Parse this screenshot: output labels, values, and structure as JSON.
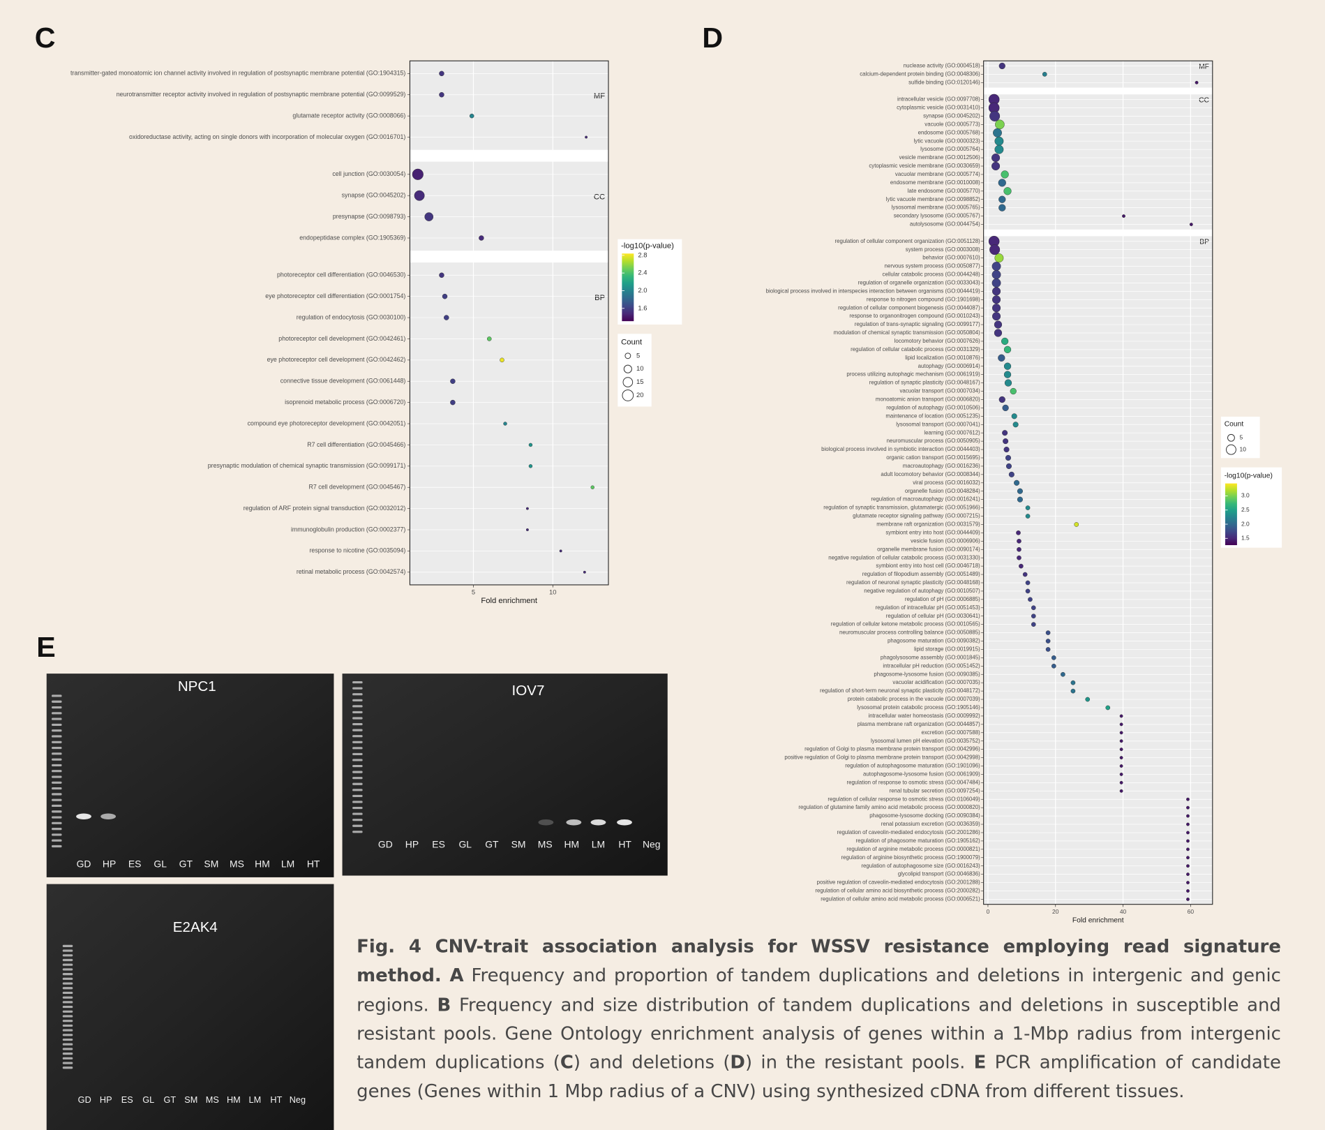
{
  "chart_data": [
    {
      "type": "dot",
      "label": "C",
      "xlabel": "Fold enrichment",
      "xlim": [
        1,
        13.5
      ],
      "xticks": [
        5,
        10
      ],
      "size_title": "Count",
      "size_ticks": [
        5,
        10,
        15,
        20
      ],
      "color_title": "-log10(p-value)",
      "color_lim": [
        1.31,
        2.84
      ],
      "color_ticks": [
        1.6,
        {
          "value": 2,
          "label": "2.0"
        },
        2.4,
        2.8
      ],
      "facets": [
        {
          "name": "MF",
          "categories": [
            "transmitter-gated monoatomic ion channel activity involved in regulation of postsynaptic membrane potential (GO:1904315)",
            "neurotransmitter receptor activity involved in regulation of postsynaptic membrane potential (GO:0099529)",
            "glutamate receptor activity (GO:0008066)",
            "oxidoreductase activity, acting on single donors with incorporation of molecular oxygen (GO:0016701)"
          ],
          "values": [
            3.0,
            3.0,
            4.9,
            12.1
          ],
          "counts": [
            4,
            4,
            3,
            1
          ],
          "p": [
            1.55,
            1.55,
            2.0,
            1.5
          ]
        },
        {
          "name": "CC",
          "categories": [
            "cell junction (GO:0030054)",
            "synapse (GO:0045202)",
            "presynapse (GO:0098793)",
            "endopeptidase complex (GO:1905369)"
          ],
          "values": [
            1.5,
            1.6,
            2.2,
            5.5
          ],
          "counts": [
            20,
            17,
            12,
            4
          ],
          "p": [
            1.45,
            1.5,
            1.55,
            1.5
          ]
        },
        {
          "name": "BP",
          "categories": [
            "photoreceptor cell differentiation (GO:0046530)",
            "eye photoreceptor cell differentiation (GO:0001754)",
            "regulation of endocytosis (GO:0030100)",
            "photoreceptor cell development (GO:0042461)",
            "eye photoreceptor cell development (GO:0042462)",
            "connective tissue development (GO:0061448)",
            "isoprenoid metabolic process (GO:0006720)",
            "compound eye photoreceptor development (GO:0042051)",
            "R7 cell differentiation (GO:0045466)",
            "presynaptic modulation of chemical synaptic transmission (GO:0099171)",
            "R7 cell development (GO:0045467)",
            "regulation of ARF protein signal transduction (GO:0032012)",
            "immunoglobulin production (GO:0002377)",
            "response to nicotine (GO:0035094)",
            "retinal metabolic process (GO:0042574)"
          ],
          "values": [
            3.0,
            3.2,
            3.3,
            6.0,
            6.8,
            3.7,
            3.7,
            7.0,
            8.6,
            8.6,
            12.5,
            8.4,
            8.4,
            10.5,
            12.0
          ],
          "counts": [
            4,
            4,
            4,
            3,
            3,
            4,
            4,
            2,
            2,
            2,
            2,
            1,
            1,
            1,
            1
          ],
          "p": [
            1.55,
            1.6,
            1.6,
            2.45,
            2.8,
            1.6,
            1.6,
            2.0,
            2.1,
            2.1,
            2.45,
            1.5,
            1.5,
            1.5,
            1.5
          ]
        }
      ]
    },
    {
      "type": "dot",
      "label": "D",
      "xlabel": "Fold enrichment",
      "xlim": [
        -1.3,
        66.5
      ],
      "xticks": [
        0,
        20,
        40,
        60
      ],
      "size_title": "Count",
      "size_ticks": [
        5,
        10
      ],
      "color_title": "-log10(p-value)",
      "color_lim": [
        1.26,
        3.44
      ],
      "color_ticks": [
        1.5,
        {
          "value": 2,
          "label": "2.0"
        },
        2.5,
        {
          "value": 3,
          "label": "3.0"
        }
      ],
      "facets": [
        {
          "name": "MF",
          "categories": [
            "nuclease activity (GO:0004518)",
            "calcium-dependent protein binding (GO:0048306)",
            "sulfide binding (GO:0120146)"
          ],
          "values": [
            4.2,
            16.8,
            61.8
          ],
          "counts": [
            4,
            2,
            1
          ],
          "p": [
            1.6,
            2.2,
            1.4
          ]
        },
        {
          "name": "CC",
          "categories": [
            "intracellular vesicle (GO:0097708)",
            "cytoplasmic vesicle (GO:0031410)",
            "synapse (GO:0045202)",
            "vacuole (GO:0005773)",
            "endosome (GO:0005768)",
            "lytic vacuole (GO:0000323)",
            "lysosome (GO:0005764)",
            "vesicle membrane (GO:0012506)",
            "cytoplasmic vesicle membrane (GO:0030659)",
            "vacuolar membrane (GO:0005774)",
            "endosome membrane (GO:0010008)",
            "late endosome (GO:0005770)",
            "lytic vacuole membrane (GO:0098852)",
            "lysosomal membrane (GO:0005765)",
            "secondary lysosome (GO:0005767)",
            "autolysosome (GO:0044754)"
          ],
          "values": [
            1.8,
            1.8,
            2.0,
            3.5,
            2.8,
            3.3,
            3.3,
            2.3,
            2.3,
            5.0,
            4.2,
            5.8,
            4.2,
            4.2,
            40.2,
            60.2
          ],
          "counts": [
            12,
            12,
            11,
            9,
            8,
            8,
            8,
            7,
            7,
            6,
            6,
            6,
            5,
            5,
            1,
            1
          ],
          "p": [
            1.5,
            1.5,
            1.6,
            3.0,
            2.1,
            2.3,
            2.3,
            1.6,
            1.6,
            2.8,
            2.0,
            2.8,
            2.0,
            2.0,
            1.4,
            1.4
          ]
        },
        {
          "name": "BP",
          "categories": [
            "regulation of cellular component organization (GO:0051128)",
            "system process (GO:0003008)",
            "behavior (GO:0007610)",
            "nervous system process (GO:0050877)",
            "cellular catabolic process (GO:0044248)",
            "regulation of organelle organization (GO:0033043)",
            "biological process involved in interspecies interaction between organisms (GO:0044419)",
            "response to nitrogen compound (GO:1901698)",
            "regulation of cellular component biogenesis (GO:0044087)",
            "response to organonitrogen compound (GO:0010243)",
            "regulation of trans-synaptic signaling (GO:0099177)",
            "modulation of chemical synaptic transmission (GO:0050804)",
            "locomotory behavior (GO:0007626)",
            "regulation of cellular catabolic process (GO:0031329)",
            "lipid localization (GO:0010876)",
            "autophagy (GO:0006914)",
            "process utilizing autophagic mechanism (GO:0061919)",
            "regulation of synaptic plasticity (GO:0048167)",
            "vacuolar transport (GO:0007034)",
            "monoatomic anion transport (GO:0006820)",
            "regulation of autophagy (GO:0010506)",
            "maintenance of location (GO:0051235)",
            "lysosomal transport (GO:0007041)",
            "learning (GO:0007612)",
            "neuromuscular process (GO:0050905)",
            "biological process involved in symbiotic interaction (GO:0044403)",
            "organic cation transport (GO:0015695)",
            "macroautophagy (GO:0016236)",
            "adult locomotory behavior (GO:0008344)",
            "viral process (GO:0016032)",
            "organelle fusion (GO:0048284)",
            "regulation of macroautophagy (GO:0016241)",
            "regulation of synaptic transmission, glutamatergic (GO:0051966)",
            "glutamate receptor signaling pathway (GO:0007215)",
            "membrane raft organization (GO:0031579)",
            "symbiont entry into host (GO:0044409)",
            "vesicle fusion (GO:0006906)",
            "organelle membrane fusion (GO:0090174)",
            "negative regulation of cellular catabolic process (GO:0031330)",
            "symbiont entry into host cell (GO:0046718)",
            "regulation of filopodium assembly (GO:0051489)",
            "regulation of neuronal synaptic plasticity (GO:0048168)",
            "negative regulation of autophagy (GO:0010507)",
            "regulation of pH (GO:0006885)",
            "regulation of intracellular pH (GO:0051453)",
            "regulation of cellular pH (GO:0030641)",
            "regulation of cellular ketone metabolic process (GO:0010565)",
            "neuromuscular process controlling balance (GO:0050885)",
            "phagosome maturation (GO:0090382)",
            "lipid storage (GO:0019915)",
            "phagolysosome assembly (GO:0001845)",
            "intracellular pH reduction (GO:0051452)",
            "phagosome-lysosome fusion (GO:0090385)",
            "vacuolar acidification (GO:0007035)",
            "regulation of short-term neuronal synaptic plasticity (GO:0048172)",
            "protein catabolic process in the vacuole (GO:0007039)",
            "lysosomal protein catabolic process (GO:1905146)",
            "intracellular water homeostasis (GO:0009992)",
            "plasma membrane raft organization (GO:0044857)",
            "excretion (GO:0007588)",
            "lysosomal lumen pH elevation (GO:0035752)",
            "regulation of Golgi to plasma membrane protein transport (GO:0042996)",
            "positive regulation of Golgi to plasma membrane protein transport (GO:0042998)",
            "regulation of autophagosome maturation (GO:1901096)",
            "autophagosome-lysosome fusion (GO:0061909)",
            "regulation of response to osmotic stress (GO:0047484)",
            "renal tubular secretion (GO:0097254)",
            "regulation of cellular response to osmotic stress (GO:0106049)",
            "regulation of glutamine family amino acid metabolic process (GO:0000820)",
            "phagosome-lysosome docking (GO:0090384)",
            "renal potassium excretion (GO:0036359)",
            "regulation of caveolin-mediated endocytosis (GO:2001286)",
            "regulation of phagosome maturation (GO:1905162)",
            "regulation of arginine metabolic process (GO:0000821)",
            "regulation of arginine biosynthetic process (GO:1900079)",
            "regulation of autophagosome size (GO:0016243)",
            "glycolipid transport (GO:0046836)",
            "positive regulation of caveolin-mediated endocytosis (GO:2001288)",
            "regulation of cellular amino acid biosynthetic process (GO:2000282)",
            "regulation of cellular amino acid metabolic process (GO:0006521)"
          ],
          "values": [
            1.8,
            2.0,
            3.3,
            2.5,
            2.5,
            2.5,
            2.5,
            2.5,
            2.5,
            2.5,
            3.0,
            3.0,
            5.0,
            5.8,
            4.0,
            5.8,
            5.8,
            6.0,
            7.5,
            4.2,
            5.2,
            7.8,
            8.2,
            5.0,
            5.2,
            5.5,
            6.0,
            6.2,
            7.0,
            8.5,
            9.5,
            9.5,
            11.8,
            11.8,
            26.2,
            9.0,
            9.2,
            9.2,
            9.2,
            9.8,
            11.0,
            11.8,
            11.8,
            12.5,
            13.5,
            13.5,
            13.5,
            17.8,
            17.8,
            17.8,
            19.5,
            19.5,
            22.2,
            25.2,
            25.2,
            29.5,
            35.5,
            39.5,
            39.5,
            39.5,
            39.5,
            39.5,
            39.5,
            39.5,
            39.5,
            39.5,
            39.5,
            59.2,
            59.2,
            59.2,
            59.2,
            59.2,
            59.2,
            59.2,
            59.2,
            59.2,
            59.2,
            59.2,
            59.2,
            59.2
          ],
          "counts": [
            12,
            11,
            8,
            8,
            8,
            8,
            7,
            7,
            7,
            7,
            6,
            6,
            5,
            5,
            5,
            5,
            5,
            5,
            4,
            4,
            4,
            3,
            3,
            3,
            3,
            3,
            3,
            3,
            3,
            3,
            3,
            3,
            2,
            2,
            2,
            2,
            2,
            2,
            2,
            2,
            2,
            2,
            2,
            2,
            2,
            2,
            2,
            2,
            2,
            2,
            2,
            2,
            2,
            2,
            2,
            2,
            2,
            1,
            1,
            1,
            1,
            1,
            1,
            1,
            1,
            1,
            1,
            1,
            1,
            1,
            1,
            1,
            1,
            1,
            1,
            1,
            1,
            1,
            1,
            1
          ],
          "p": [
            1.5,
            1.5,
            3.1,
            1.7,
            1.7,
            1.7,
            1.6,
            1.6,
            1.6,
            1.6,
            1.6,
            1.6,
            2.6,
            2.7,
            1.9,
            2.3,
            2.3,
            2.3,
            2.8,
            1.6,
            1.9,
            2.3,
            2.3,
            1.6,
            1.6,
            1.6,
            1.7,
            1.7,
            1.7,
            2.0,
            2.0,
            2.0,
            2.3,
            2.3,
            3.3,
            1.5,
            1.5,
            1.5,
            1.5,
            1.5,
            1.6,
            1.7,
            1.7,
            1.7,
            1.7,
            1.7,
            1.7,
            1.8,
            1.8,
            1.8,
            1.9,
            1.9,
            2.0,
            2.1,
            2.1,
            2.4,
            2.5,
            1.4,
            1.4,
            1.4,
            1.4,
            1.4,
            1.4,
            1.4,
            1.4,
            1.4,
            1.4,
            1.4,
            1.4,
            1.4,
            1.4,
            1.4,
            1.4,
            1.4,
            1.4,
            1.4,
            1.4,
            1.4,
            1.4,
            1.4
          ]
        }
      ]
    }
  ],
  "panel_e": {
    "label": "E",
    "gels": [
      {
        "title": "NPC1",
        "lanes": [
          "GD",
          "HP",
          "ES",
          "GL",
          "GT",
          "SM",
          "MS",
          "HM",
          "LM",
          "HT"
        ]
      },
      {
        "title": "IOV7",
        "lanes": [
          "GD",
          "HP",
          "ES",
          "GL",
          "GT",
          "SM",
          "MS",
          "HM",
          "LM",
          "HT",
          "Neg"
        ]
      },
      {
        "title": "E2AK4",
        "lanes": [
          "GD",
          "HP",
          "ES",
          "GL",
          "GT",
          "SM",
          "MS",
          "HM",
          "LM",
          "HT",
          "Neg"
        ]
      }
    ]
  },
  "caption": [
    {
      "text": "Fig. 4 CNV-trait association analysis for WSSV resistance employing read signature method. A",
      "bold": true
    },
    {
      "text": " Frequency and proportion of tandem duplications and deletions in intergenic and genic regions. ",
      "bold": false
    },
    {
      "text": "B",
      "bold": true
    },
    {
      "text": " Frequency and size distribution of tandem duplications and deletions in susceptible and resistant pools. Gene Ontology enrichment analysis of genes within a 1-Mbp radius from intergenic tandem duplications (",
      "bold": false
    },
    {
      "text": "C",
      "bold": true
    },
    {
      "text": ") and deletions (",
      "bold": false
    },
    {
      "text": "D",
      "bold": true
    },
    {
      "text": ") in the resistant pools. ",
      "bold": false
    },
    {
      "text": "E",
      "bold": true
    },
    {
      "text": " PCR amplification of candidate genes (Genes within 1 Mbp radius of a CNV) using synthesized cDNA from different tissues.",
      "bold": false
    }
  ]
}
